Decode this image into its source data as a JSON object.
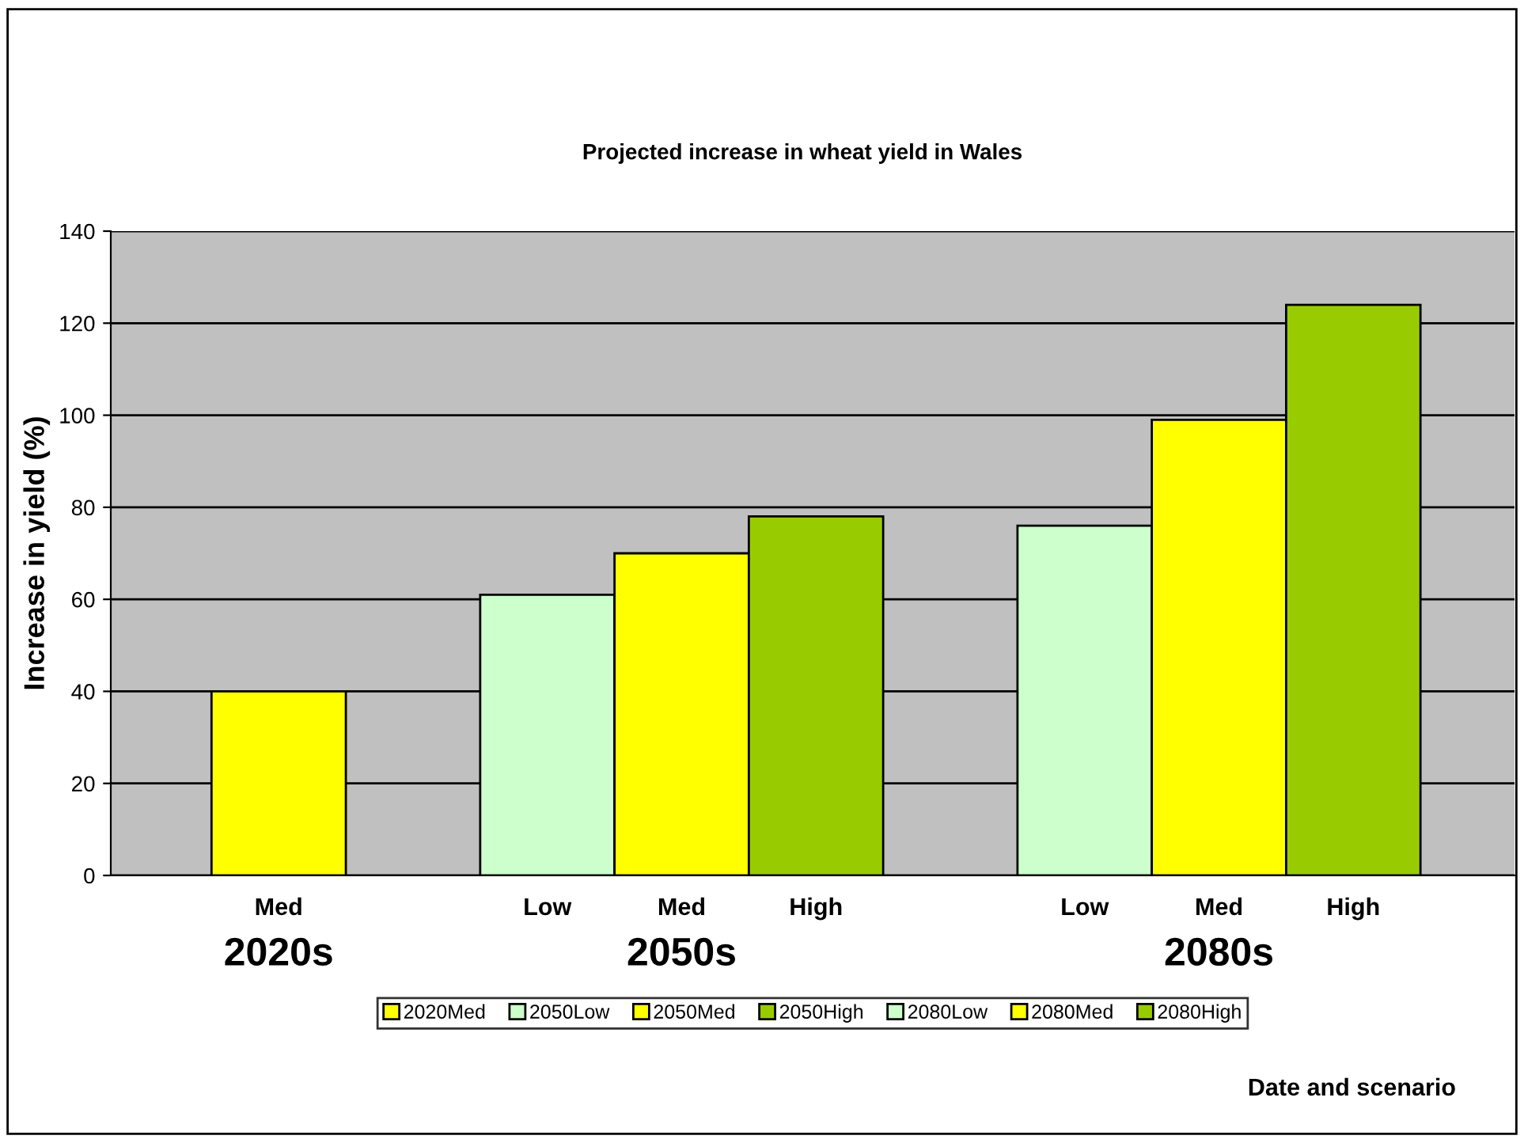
{
  "chart_data": {
    "type": "bar",
    "title": "Projected increase in wheat yield in Wales",
    "ylabel": "Increase in yield (%)",
    "categories": [
      "Med",
      null,
      "Low",
      "Med",
      "High",
      null,
      "Low",
      "Med",
      "High"
    ],
    "series": [
      {
        "name": "2020Med",
        "color": "#ffff00",
        "values": [
          40,
          null,
          null,
          null,
          null,
          null,
          null,
          null,
          null
        ]
      },
      {
        "name": "2050Low",
        "color": "#ccffcc",
        "values": [
          null,
          null,
          61,
          null,
          null,
          null,
          null,
          null,
          null
        ]
      },
      {
        "name": "2050Med",
        "color": "#ffff00",
        "values": [
          null,
          null,
          null,
          70,
          null,
          null,
          null,
          null,
          null
        ]
      },
      {
        "name": "2050High",
        "color": "#99cc00",
        "values": [
          null,
          null,
          null,
          null,
          78,
          null,
          null,
          null,
          null
        ]
      },
      {
        "name": "2080Low",
        "color": "#ccffcc",
        "values": [
          null,
          null,
          null,
          null,
          null,
          null,
          76,
          null,
          null
        ]
      },
      {
        "name": "2080Med",
        "color": "#ffff00",
        "values": [
          null,
          null,
          null,
          null,
          null,
          null,
          null,
          99,
          null
        ]
      },
      {
        "name": "2080High",
        "color": "#99cc00",
        "values": [
          null,
          null,
          null,
          null,
          null,
          null,
          null,
          null,
          124
        ]
      }
    ],
    "annotations": [
      "2020s",
      "2050s",
      "2080s",
      "Date and scenario"
    ],
    "ylim": [
      0,
      140
    ],
    "yticks": [
      0,
      20,
      40,
      60,
      80,
      100,
      120,
      140
    ],
    "grid": "y",
    "legend": "bottom"
  }
}
